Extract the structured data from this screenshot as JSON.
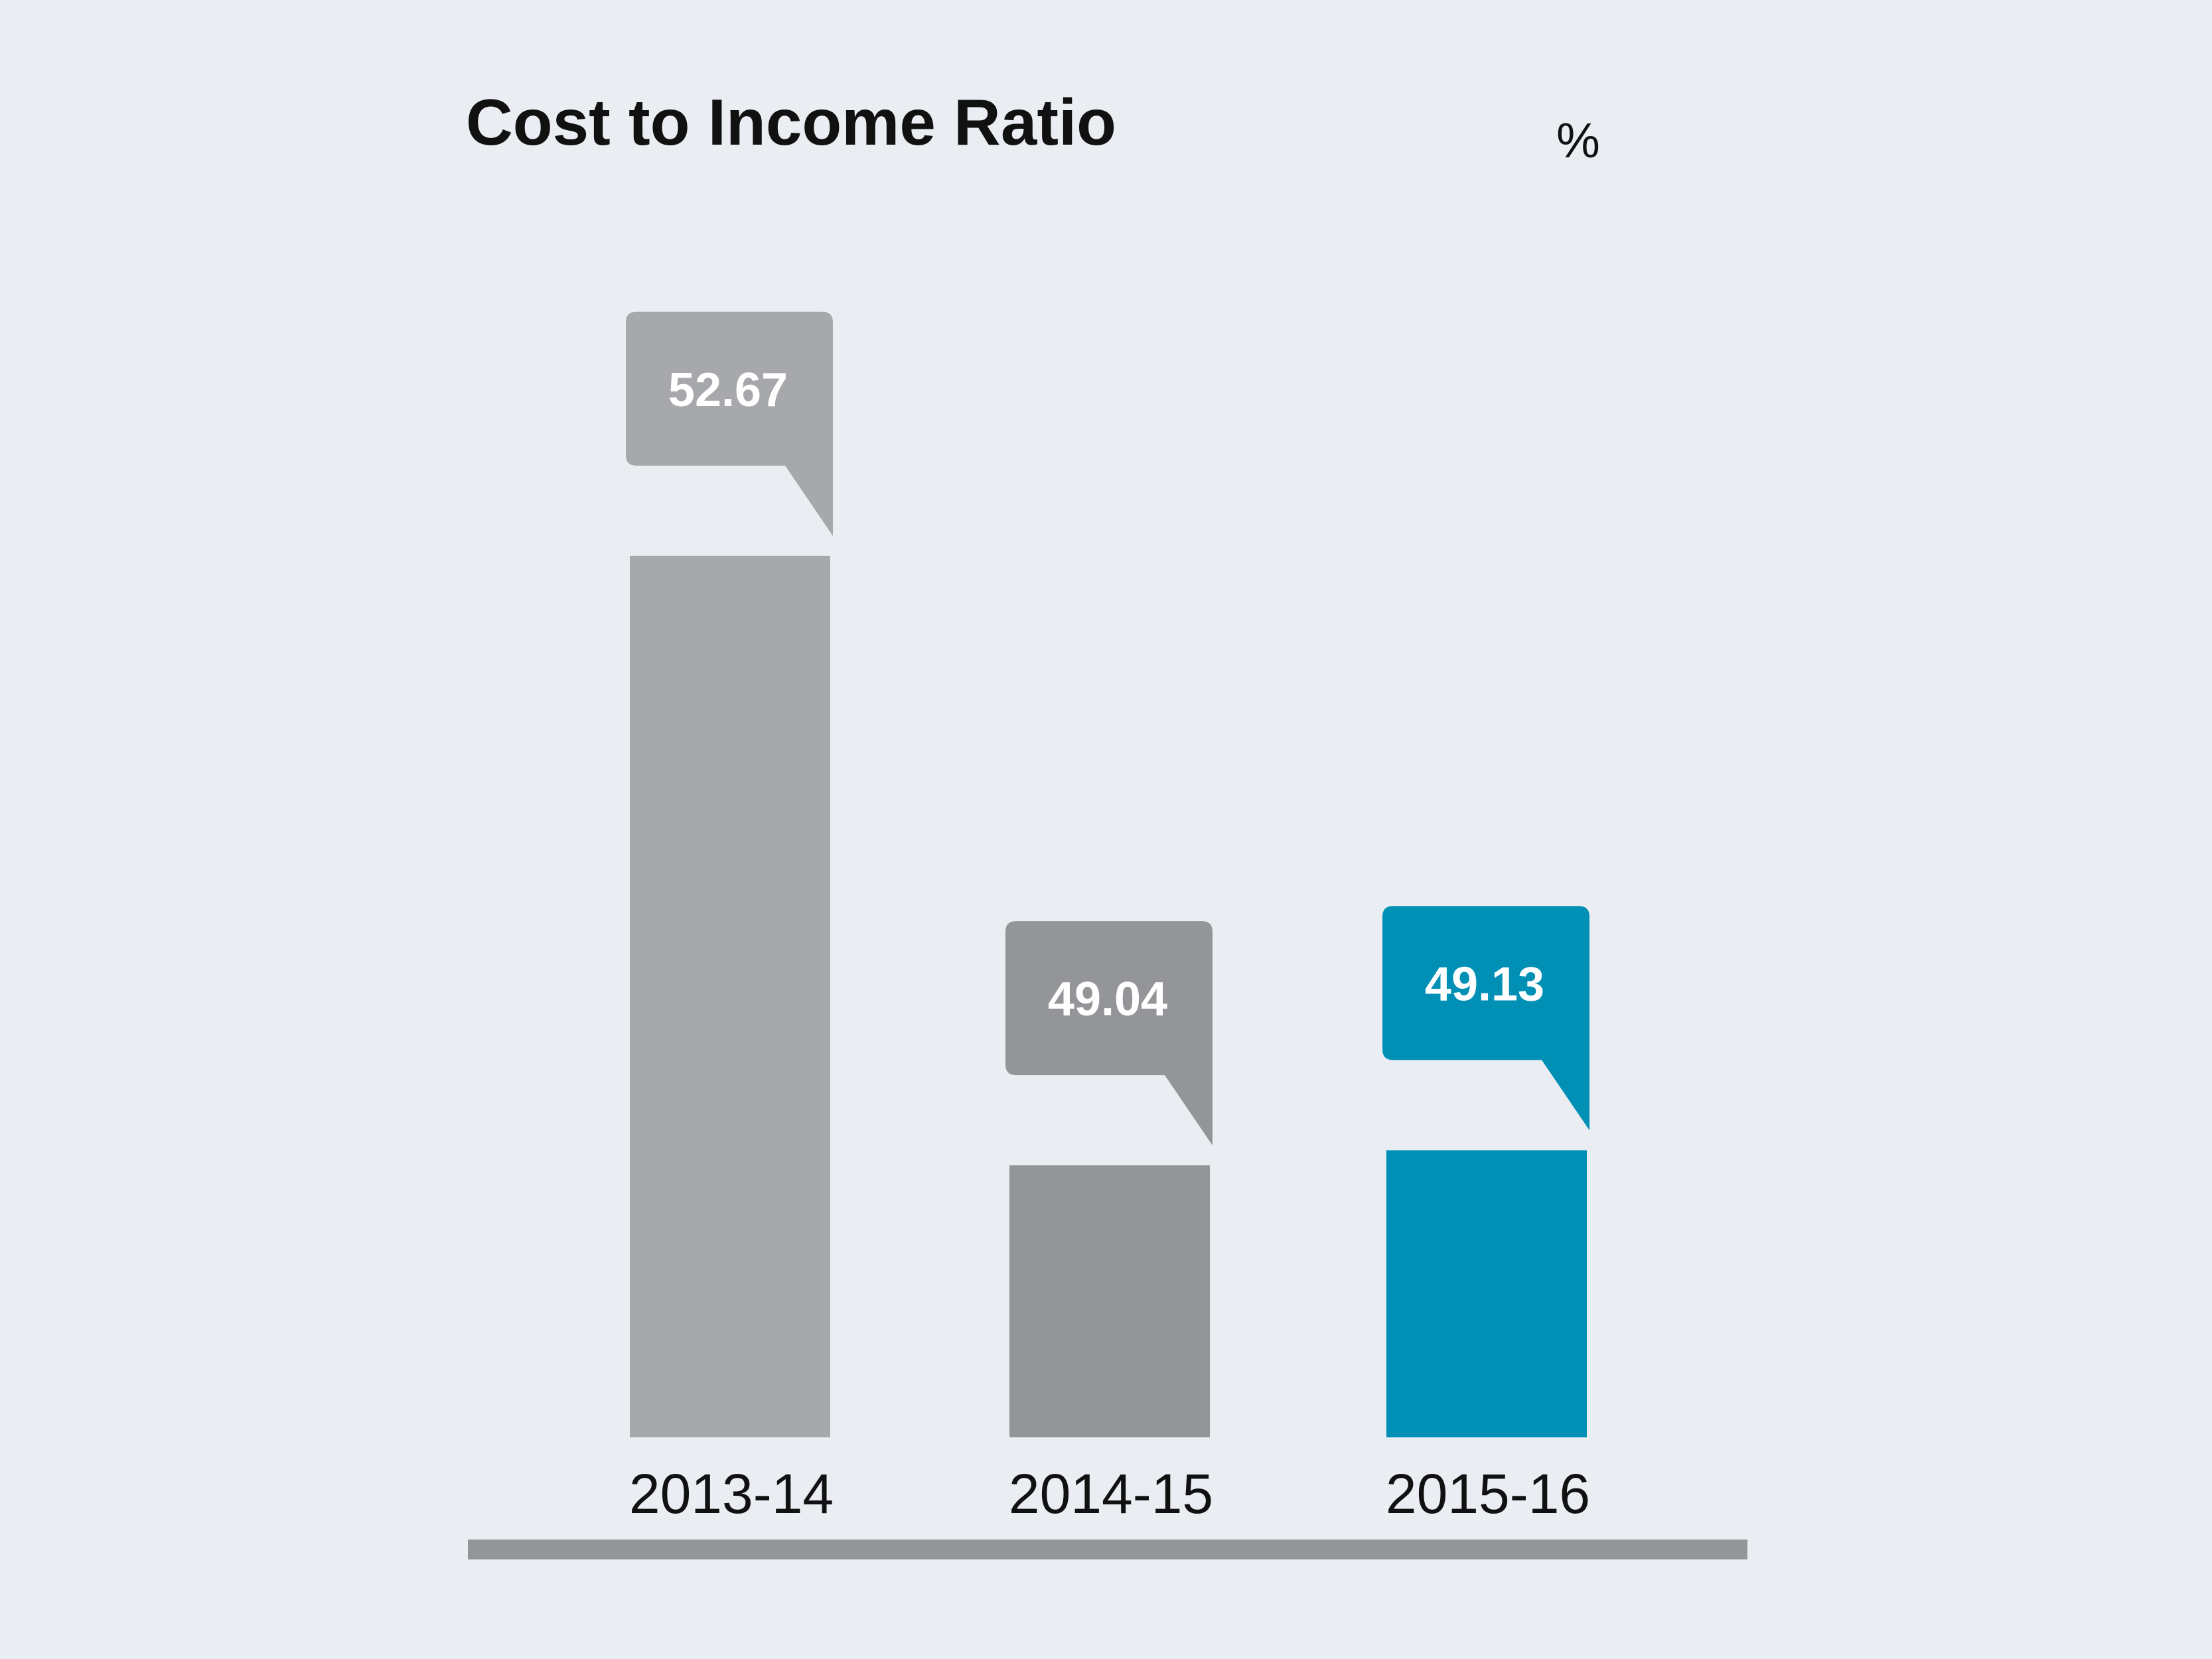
{
  "chart_data": {
    "type": "bar",
    "title": "Cost to Income Ratio",
    "unit": "%",
    "categories": [
      "2013-14",
      "2014-15",
      "2015-16"
    ],
    "values": [
      52.67,
      49.04,
      49.13
    ],
    "value_labels": [
      "52.67",
      "49.04",
      "49.13"
    ],
    "colors": [
      "#a7a8ab",
      "#939598",
      "#008fb5"
    ],
    "baseline_color": "#939598",
    "grid": false,
    "legend": "none"
  }
}
